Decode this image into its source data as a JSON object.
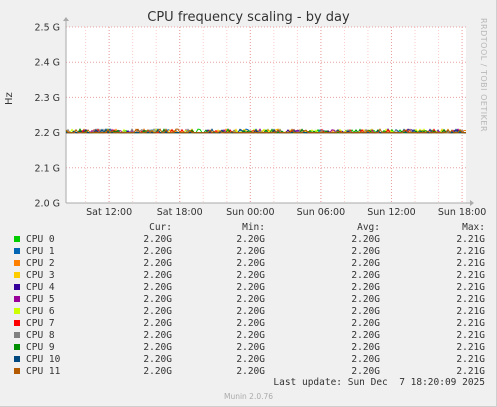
{
  "chart_data": {
    "type": "line",
    "title": "CPU frequency scaling - by day",
    "ylabel": "Hz",
    "ylim": [
      2.0,
      2.5
    ],
    "y_ticks": [
      "2.0 G",
      "2.1 G",
      "2.2 G",
      "2.3 G",
      "2.4 G",
      "2.5 G"
    ],
    "y_tick_values": [
      2.0,
      2.1,
      2.2,
      2.3,
      2.4,
      2.5
    ],
    "x_ticks": [
      "Sat 12:00",
      "Sat 18:00",
      "Sun 00:00",
      "Sun 06:00",
      "Sun 12:00",
      "Sun 18:00"
    ],
    "x_range": [
      "Sat 08:20",
      "Sun 18:20"
    ],
    "x_tick_values": [
      "Sat 12:00",
      "Sat 18:00",
      "Sun 00:00",
      "Sun 06:00",
      "Sun 12:00",
      "Sun 18:00"
    ],
    "grid": true,
    "series_value_ghz": 2.2,
    "series_max_ghz": 2.21,
    "columns": [
      "Cur:",
      "Min:",
      "Avg:",
      "Max:"
    ],
    "series": [
      {
        "name": "CPU 0",
        "color": "#00cc00",
        "cur": "2.20G",
        "min": "2.20G",
        "avg": "2.20G",
        "max": "2.21G"
      },
      {
        "name": "CPU 1",
        "color": "#0066b3",
        "cur": "2.20G",
        "min": "2.20G",
        "avg": "2.20G",
        "max": "2.21G"
      },
      {
        "name": "CPU 2",
        "color": "#ff8000",
        "cur": "2.20G",
        "min": "2.20G",
        "avg": "2.20G",
        "max": "2.21G"
      },
      {
        "name": "CPU 3",
        "color": "#ffcc00",
        "cur": "2.20G",
        "min": "2.20G",
        "avg": "2.20G",
        "max": "2.21G"
      },
      {
        "name": "CPU 4",
        "color": "#330099",
        "cur": "2.20G",
        "min": "2.20G",
        "avg": "2.20G",
        "max": "2.21G"
      },
      {
        "name": "CPU 5",
        "color": "#990099",
        "cur": "2.20G",
        "min": "2.20G",
        "avg": "2.20G",
        "max": "2.21G"
      },
      {
        "name": "CPU 6",
        "color": "#ccff00",
        "cur": "2.20G",
        "min": "2.20G",
        "avg": "2.20G",
        "max": "2.21G"
      },
      {
        "name": "CPU 7",
        "color": "#ff0000",
        "cur": "2.20G",
        "min": "2.20G",
        "avg": "2.20G",
        "max": "2.21G"
      },
      {
        "name": "CPU 8",
        "color": "#808080",
        "cur": "2.20G",
        "min": "2.20G",
        "avg": "2.20G",
        "max": "2.21G"
      },
      {
        "name": "CPU 9",
        "color": "#008f00",
        "cur": "2.20G",
        "min": "2.20G",
        "avg": "2.20G",
        "max": "2.21G"
      },
      {
        "name": "CPU 10",
        "color": "#00487d",
        "cur": "2.20G",
        "min": "2.20G",
        "avg": "2.20G",
        "max": "2.21G"
      },
      {
        "name": "CPU 11",
        "color": "#b35a00",
        "cur": "2.20G",
        "min": "2.20G",
        "avg": "2.20G",
        "max": "2.21G"
      }
    ]
  },
  "watermark": "RRDTOOL / TOBI OETIKER",
  "last_update": "Last update: Sun Dec  7 18:20:09 2025",
  "footer": "Munin 2.0.76"
}
